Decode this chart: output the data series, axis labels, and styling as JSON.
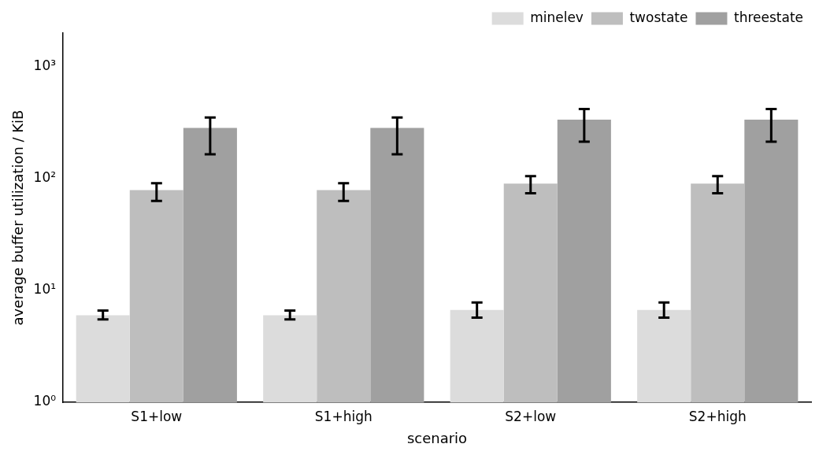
{
  "chart_data": {
    "type": "bar",
    "xlabel": "scenario",
    "ylabel": "average buffer utilization / KiB",
    "categories": [
      "S1+low",
      "S1+high",
      "S2+low",
      "S2+high"
    ],
    "series": [
      {
        "name": "minelev",
        "color": "#dcdcdc",
        "values": [
          6.0,
          6.0,
          6.7,
          6.7
        ],
        "errors": [
          [
            5.5,
            6.6
          ],
          [
            5.5,
            6.6
          ],
          [
            5.7,
            7.8
          ],
          [
            5.7,
            7.8
          ]
        ]
      },
      {
        "name": "twostate",
        "color": "#bebebe",
        "values": [
          79,
          79,
          90,
          90
        ],
        "errors": [
          [
            63,
            91
          ],
          [
            63,
            91
          ],
          [
            74,
            105
          ],
          [
            74,
            105
          ]
        ]
      },
      {
        "name": "threestate",
        "color": "#a0a0a0",
        "values": [
          284,
          284,
          337,
          337
        ],
        "errors": [
          [
            165,
            352
          ],
          [
            165,
            352
          ],
          [
            214,
            418
          ],
          [
            214,
            418
          ]
        ]
      }
    ],
    "log": "y",
    "ylim": [
      1,
      2000
    ],
    "yticks": [
      {
        "value": 1,
        "label": "10⁰"
      },
      {
        "value": 10,
        "label": "10¹"
      },
      {
        "value": 100,
        "label": "10²"
      },
      {
        "value": 1000,
        "label": "10³"
      }
    ],
    "legend": "top right"
  }
}
